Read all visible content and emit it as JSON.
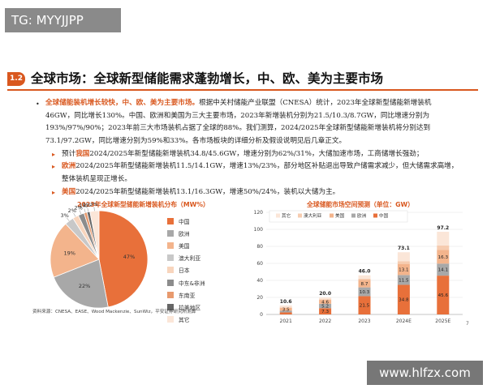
{
  "watermark_top": "TG: MYYJJPP",
  "watermark_bottom": "www.hlfzx.com",
  "section": {
    "badge": "1.2",
    "title": "全球市场：全球新型储能需求蓬勃增长，中、欧、美为主要市场"
  },
  "body": {
    "p1_highlight": "全球储能装机增长较快，中、欧、美为主要市场。",
    "p1_line1_rest": "根据中关村储能产业联盟（CNESA）统计，2023年全球新型储能新增装机",
    "p1_line2": "46GW，同比增长130%。中国、欧洲和美国为三大主要市场，2023年新增装机分别为21.5/10.3/8.7GW，同比增速分别为",
    "p1_line3": "193%/97%/90%；2023年前三大市场装机占据了全球的88%。我们测算，2024/2025年全球新型储能新增装机将分别达到",
    "p1_line4": "73.1/97.2GW，同比增速分别为59%和33%。各市场板块的详细分析及假设说明见后几章正文。",
    "p2": "预计我国2024/2025年新型储能新增装机34.8/45.6GW，增速分别为62%/31%，大储加速市场，工商储增长强劲；",
    "p2_prefix": "预计",
    "p2_hl": "我国",
    "p2_rest": "2024/2025年新型储能新增装机34.8/45.6GW，增速分别为62%/31%，大储加速市场，工商储增长强劲；",
    "p3_hl": "欧洲",
    "p3_rest_line1": "2024/2025年新型储能新增装机11.5/14.1GW，增速13%/23%，部分地区补贴退出导致户储需求减少，但大储需求高增，",
    "p3_line2": "整体装机呈现正增长。",
    "p4_hl": "美国",
    "p4_rest": "2024/2025年新型储能新增装机13.1/16.3GW，增速50%/24%，装机以大储为主。"
  },
  "colors": {
    "accent": "#d9581f"
  },
  "chart_data": [
    {
      "type": "pie",
      "title": "2023年全球新型储能新增装机分布（MW%）",
      "slices": [
        {
          "name": "中国",
          "value": 47,
          "label": "47%",
          "color": "#e8703a"
        },
        {
          "name": "欧洲",
          "value": 22,
          "label": "22%",
          "color": "#a8a8a8"
        },
        {
          "name": "美国",
          "value": 19,
          "label": "19%",
          "color": "#f3b48c"
        },
        {
          "name": "澳大利亚",
          "value": 3,
          "label": "3%",
          "color": "#c8c8c8"
        },
        {
          "name": "日本",
          "value": 2,
          "label": "2%",
          "color": "#f8d5bd"
        },
        {
          "name": "中东&非洲",
          "value": 2,
          "label": "2%",
          "color": "#8c8c8c"
        },
        {
          "name": "东南亚",
          "value": 1,
          "label": "1%",
          "color": "#e89a6e"
        },
        {
          "name": "拉美地区",
          "value": 1,
          "label": "1%",
          "color": "#666666"
        },
        {
          "name": "其它",
          "value": 3,
          "label": "3%",
          "color": "#fbe6d8"
        }
      ]
    },
    {
      "type": "bar",
      "stacked": true,
      "title": "全球储能市场空间预测（单位：GW）",
      "categories": [
        "2021",
        "2022",
        "2023",
        "2024E",
        "2025E"
      ],
      "ylim": [
        0,
        120
      ],
      "yticks": [
        0,
        20,
        40,
        60,
        80,
        100,
        120
      ],
      "legend": [
        "其它",
        "澳大利亚",
        "美国",
        "欧洲",
        "中国"
      ],
      "totals": [
        "10.6",
        "20.0",
        "46.0",
        "73.1",
        "97.2"
      ],
      "total_values": [
        10.6,
        20.0,
        46.0,
        73.1,
        97.2
      ],
      "series": [
        {
          "name": "中国",
          "color": "#e8703a",
          "values": [
            2.4,
            7.3,
            21.5,
            34.8,
            45.6
          ],
          "labels": [
            "",
            "7.3",
            "21.5",
            "34.8",
            "45.6"
          ]
        },
        {
          "name": "欧洲",
          "color": "#a8a8a8",
          "values": [
            2.0,
            5.2,
            10.3,
            11.5,
            14.1
          ],
          "labels": [
            "",
            "5.2",
            "10.3",
            "11.5",
            "14.1"
          ]
        },
        {
          "name": "美国",
          "color": "#f3b48c",
          "values": [
            3.5,
            4.6,
            8.7,
            13.1,
            16.3
          ],
          "labels": [
            "3.5",
            "4.6",
            "8.7",
            "13.1",
            "16.3"
          ]
        },
        {
          "name": "澳大利亚",
          "color": "#f6ccb0",
          "values": [
            0.5,
            0.8,
            1.5,
            3.0,
            5.0
          ],
          "labels": [
            "",
            "",
            "",
            "",
            ""
          ]
        },
        {
          "name": "其它",
          "color": "#fbe6d8",
          "values": [
            2.2,
            2.1,
            4.0,
            10.7,
            16.2
          ],
          "labels": [
            "",
            "",
            "",
            "",
            ""
          ]
        }
      ]
    }
  ],
  "source": "资料来源：CNESA、EASE、Wood Mackenzie、SunWiz，平安证券研究所测算",
  "page_number": "7"
}
